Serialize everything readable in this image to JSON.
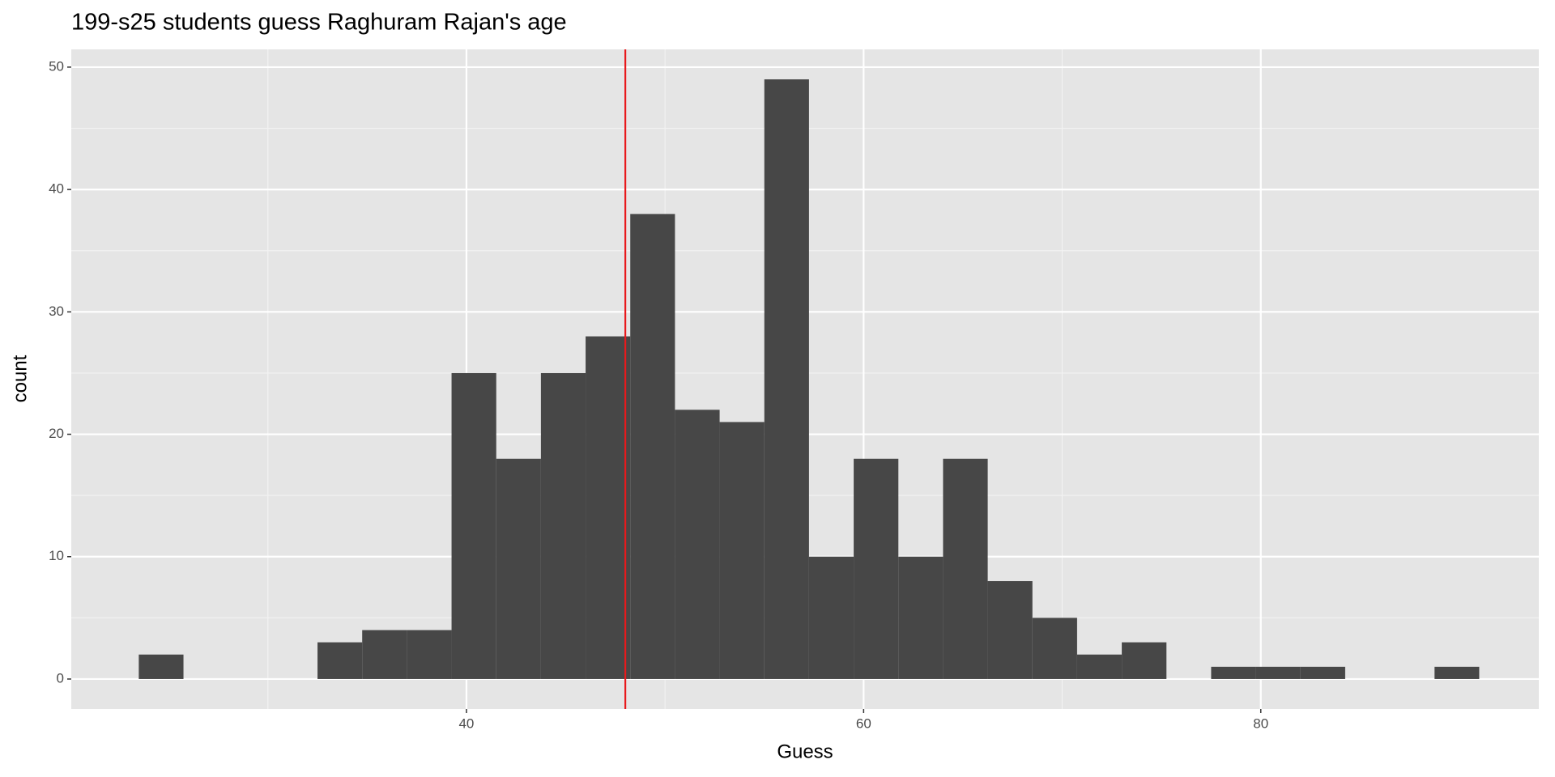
{
  "chart_data": {
    "type": "histogram",
    "title": "199-s25 students guess Raghuram Rajan's age",
    "x_label": "Guess",
    "y_label": "count",
    "bins": [
      23.5,
      25.75,
      28,
      30.25,
      32.5,
      34.75,
      37,
      39.25,
      41.5,
      43.75,
      46,
      48.25,
      50.5,
      52.75,
      55,
      57.25,
      59.5,
      61.75,
      64,
      66.25,
      68.5,
      70.75,
      73,
      75.25,
      77.5,
      79.75,
      82,
      84.25,
      86.5,
      88.75,
      91
    ],
    "counts": [
      2,
      0,
      0,
      0,
      3,
      4,
      4,
      25,
      18,
      25,
      28,
      38,
      22,
      21,
      49,
      10,
      18,
      10,
      18,
      8,
      5,
      2,
      3,
      0,
      1,
      1,
      1,
      0,
      0,
      1
    ],
    "color": "#474747",
    "vline": 48,
    "vline_color": "#e8191c",
    "xlim": [
      20.1,
      94.0
    ],
    "xticks": [
      40,
      60,
      80
    ],
    "xminor": [
      30,
      50,
      70
    ],
    "ylim": [
      -2.45,
      51.45
    ],
    "yticks": [
      0,
      10,
      20,
      30,
      40,
      50
    ],
    "yminor": [
      5,
      15,
      25,
      35,
      45
    ],
    "grid": true
  }
}
